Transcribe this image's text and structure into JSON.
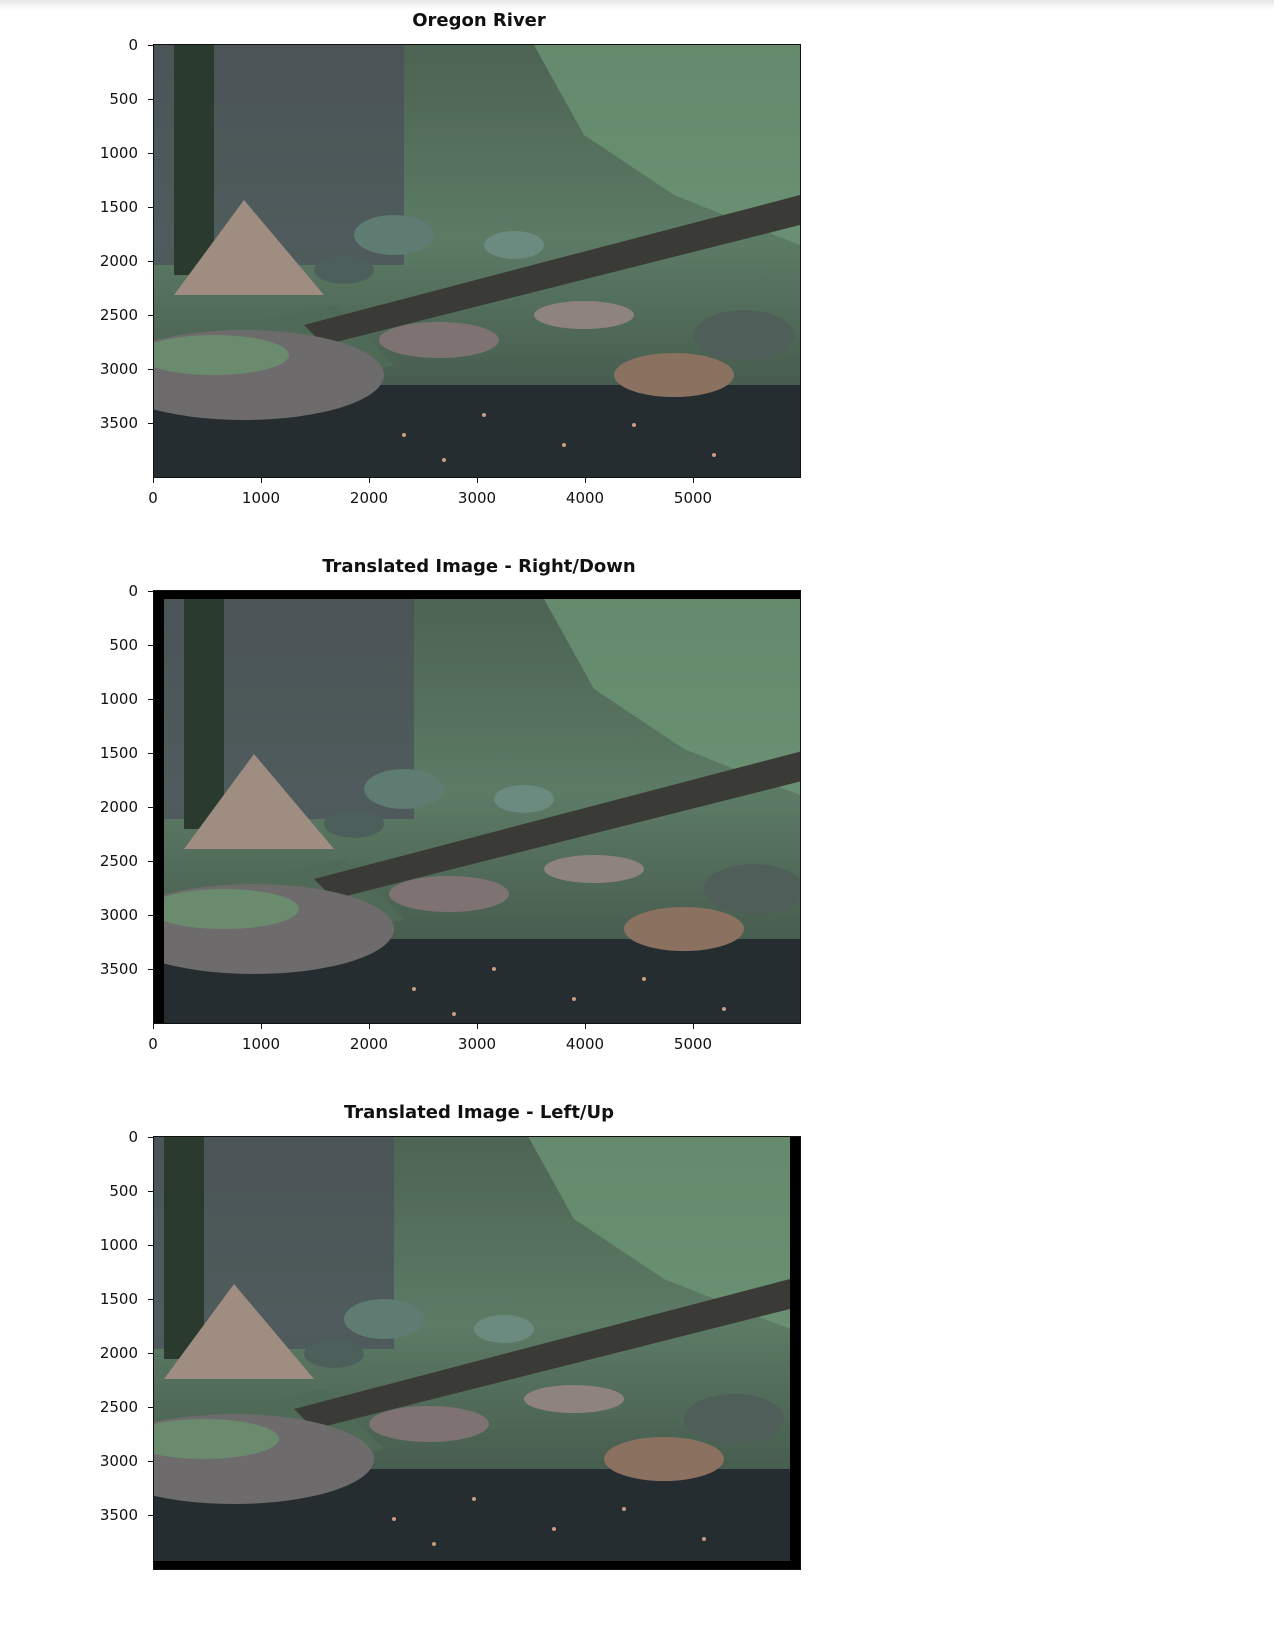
{
  "panels": [
    {
      "title": "Oregon River",
      "shift": "none"
    },
    {
      "title": "Translated Image - Right/Down",
      "shift": "right-down"
    },
    {
      "title": "Translated Image - Left/Up",
      "shift": "left-up"
    }
  ],
  "axes": {
    "yticks": [
      "0",
      "500",
      "1000",
      "1500",
      "2000",
      "2500",
      "3000",
      "3500"
    ],
    "xticks": [
      "0",
      "1000",
      "2000",
      "3000",
      "4000",
      "5000"
    ]
  },
  "colors": {
    "background": "#ffffff",
    "border": "#111111",
    "pad": "#000000"
  }
}
